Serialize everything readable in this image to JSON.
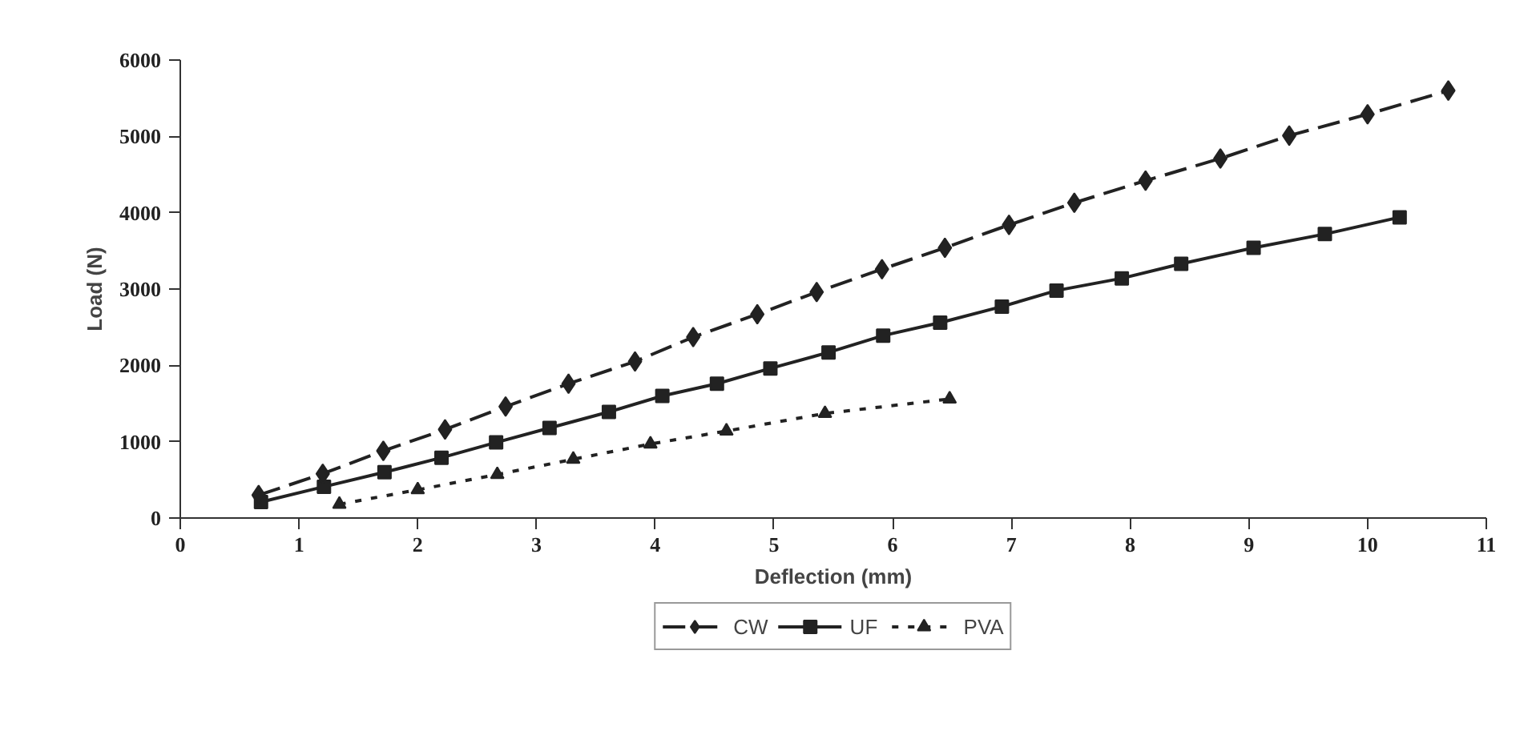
{
  "chart_data": {
    "type": "line",
    "xlabel": "Deflection (mm)",
    "ylabel": "Load (N)",
    "xlim": [
      0,
      11
    ],
    "xticks": [
      0,
      1,
      2,
      3,
      4,
      5,
      6,
      7,
      8,
      9,
      10,
      11
    ],
    "ylim": [
      0,
      6000
    ],
    "yticks": [
      0,
      1000,
      2000,
      3000,
      4000,
      5000,
      6000
    ],
    "grid": false,
    "legend": "bottom",
    "series": [
      {
        "name": "CW",
        "color": "#222222",
        "marker": "diamond",
        "line_style": "dashed",
        "x": [
          0.66,
          1.2,
          1.71,
          2.23,
          2.74,
          3.27,
          3.83,
          4.32,
          4.86,
          5.36,
          5.91,
          6.44,
          6.98,
          7.53,
          8.13,
          8.76,
          9.34,
          10.0,
          10.68
        ],
        "values": [
          300,
          580,
          880,
          1160,
          1460,
          1760,
          2050,
          2370,
          2670,
          2960,
          3260,
          3540,
          3840,
          4130,
          4420,
          4710,
          5010,
          5290,
          5600
        ]
      },
      {
        "name": "UF",
        "color": "#222222",
        "marker": "square",
        "line_style": "solid",
        "x": [
          0.68,
          1.21,
          1.72,
          2.2,
          2.66,
          3.11,
          3.61,
          4.06,
          4.52,
          4.97,
          5.46,
          5.92,
          6.4,
          6.92,
          7.38,
          7.93,
          8.43,
          9.04,
          9.64,
          10.27
        ],
        "values": [
          210,
          410,
          600,
          790,
          990,
          1180,
          1390,
          1600,
          1760,
          1960,
          2170,
          2390,
          2560,
          2770,
          2980,
          3140,
          3330,
          3540,
          3720,
          3940
        ]
      },
      {
        "name": "PVA",
        "color": "#222222",
        "marker": "triangle",
        "line_style": "dotted",
        "x": [
          1.34,
          2.0,
          2.67,
          3.31,
          3.96,
          4.6,
          5.43,
          6.48
        ],
        "values": [
          180,
          370,
          570,
          770,
          970,
          1140,
          1370,
          1560
        ]
      }
    ]
  }
}
